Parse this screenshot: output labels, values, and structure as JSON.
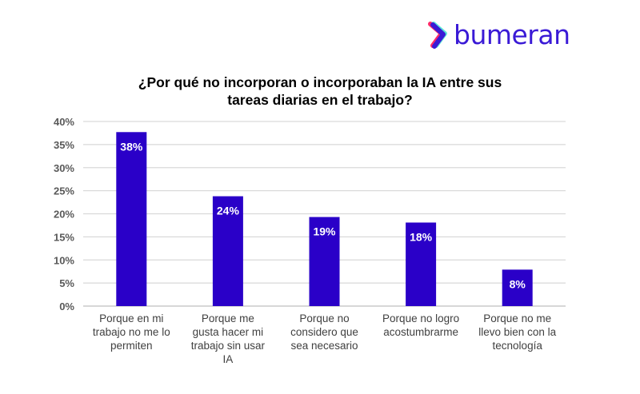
{
  "logo": {
    "text": "bumeran"
  },
  "chart_data": {
    "type": "bar",
    "title_lines": [
      "¿Por qué no incorporan o incorporaban la IA entre sus",
      "tareas diarias en el trabajo?"
    ],
    "categories": [
      [
        "Porque en mi",
        "trabajo no me lo",
        "permiten"
      ],
      [
        "Porque me",
        "gusta hacer mi",
        "trabajo sin usar",
        "IA"
      ],
      [
        "Porque no",
        "considero que",
        "sea necesario"
      ],
      [
        "Porque no logro",
        "acostumbrarme"
      ],
      [
        "Porque no me",
        "llevo bien con la",
        "tecnología"
      ]
    ],
    "values": [
      37.7,
      23.8,
      19.3,
      18.1,
      7.9
    ],
    "data_labels": [
      "38%",
      "24%",
      "19%",
      "18%",
      "8%"
    ],
    "ylim": [
      0,
      40
    ],
    "yticks": [
      "0%",
      "5%",
      "10%",
      "15%",
      "20%",
      "25%",
      "30%",
      "35%",
      "40%"
    ],
    "xlabel": "",
    "ylabel": "",
    "grid": true,
    "legend": "none",
    "bar_color": "#2a00c8"
  }
}
